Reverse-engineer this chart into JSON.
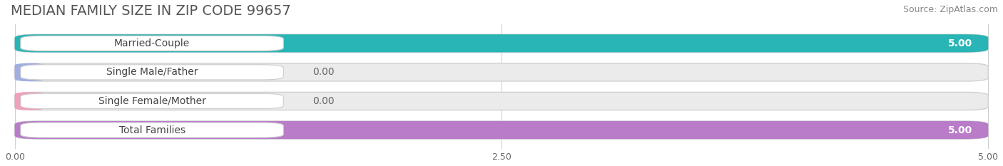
{
  "title": "MEDIAN FAMILY SIZE IN ZIP CODE 99657",
  "source": "Source: ZipAtlas.com",
  "categories": [
    "Married-Couple",
    "Single Male/Father",
    "Single Female/Mother",
    "Total Families"
  ],
  "values": [
    5.0,
    0.0,
    0.0,
    5.0
  ],
  "bar_colors": [
    "#29b5b5",
    "#a0aee0",
    "#f0a0b8",
    "#b87cc8"
  ],
  "xlim_data": [
    0.0,
    5.0
  ],
  "xticks": [
    0.0,
    2.5,
    5.0
  ],
  "xtick_labels": [
    "0.00",
    "2.50",
    "5.00"
  ],
  "background_color": "#ffffff",
  "bar_bg_color": "#ebebeb",
  "title_fontsize": 14,
  "source_fontsize": 9,
  "label_fontsize": 10,
  "value_fontsize": 10,
  "bar_height": 0.62
}
